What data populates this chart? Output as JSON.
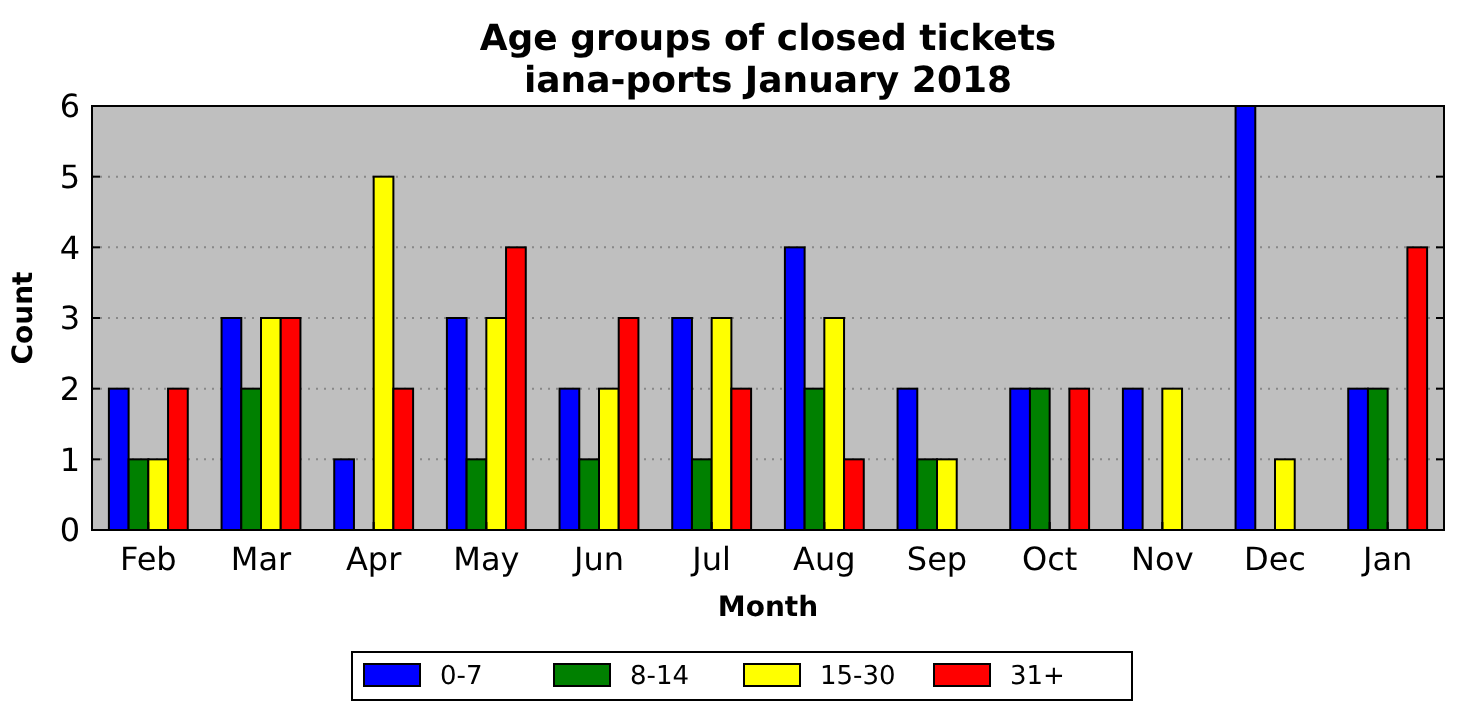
{
  "chart_data": {
    "type": "bar",
    "title": "Age groups of closed tickets\niana-ports January 2018",
    "xlabel": "Month",
    "ylabel": "Count",
    "categories": [
      "Feb",
      "Mar",
      "Apr",
      "May",
      "Jun",
      "Jul",
      "Aug",
      "Sep",
      "Oct",
      "Nov",
      "Dec",
      "Jan"
    ],
    "series": [
      {
        "name": "0-7",
        "color": "#0000ff",
        "values": [
          2,
          3,
          1,
          3,
          2,
          3,
          4,
          2,
          2,
          2,
          6,
          2
        ]
      },
      {
        "name": "8-14",
        "color": "#008000",
        "values": [
          1,
          2,
          0,
          1,
          1,
          1,
          2,
          1,
          2,
          0,
          0,
          2
        ]
      },
      {
        "name": "15-30",
        "color": "#ffff00",
        "values": [
          1,
          3,
          5,
          3,
          2,
          3,
          3,
          1,
          0,
          2,
          1,
          0
        ]
      },
      {
        "name": "31+",
        "color": "#ff0000",
        "values": [
          2,
          3,
          2,
          4,
          3,
          2,
          1,
          0,
          2,
          0,
          0,
          4
        ]
      }
    ],
    "ylim": [
      0,
      6
    ],
    "yticks": [
      0,
      1,
      2,
      3,
      4,
      5,
      6
    ],
    "grid": "y",
    "legend": "bottom"
  }
}
